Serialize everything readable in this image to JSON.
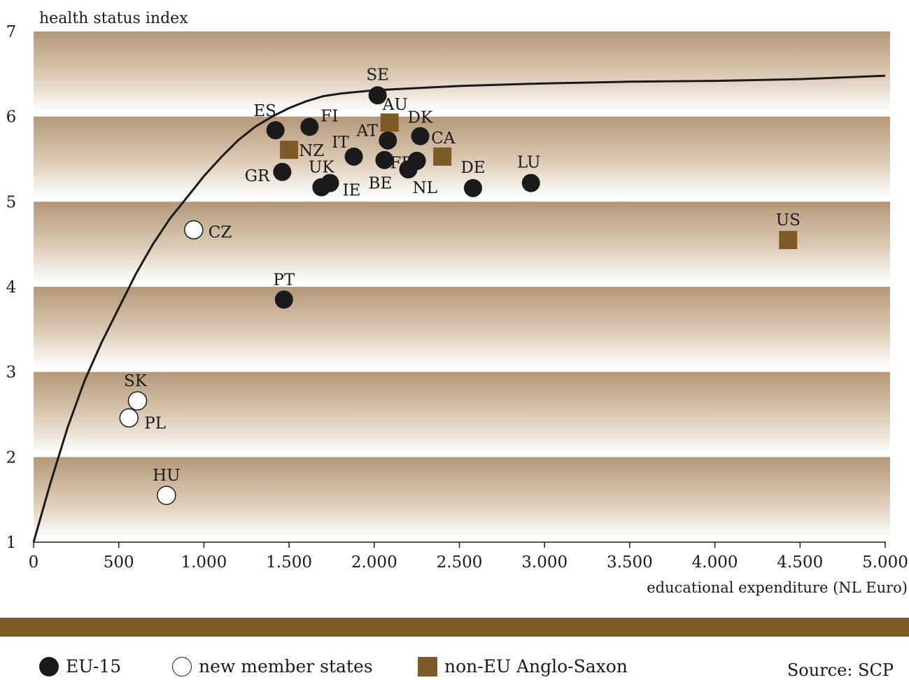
{
  "colors": {
    "band": "#b79d7f",
    "accent": "#7d5a26",
    "eu": "#1a1a1a",
    "new": "#ffffff"
  },
  "chart_data": {
    "type": "scatter",
    "ylabel": "health status index",
    "xlabel": "educational expenditure (NL Euro)",
    "xlim": [
      0,
      5000
    ],
    "ylim": [
      1,
      7
    ],
    "x_ticks": [
      0,
      500,
      1000,
      1500,
      2000,
      2500,
      3000,
      3500,
      4000,
      4500,
      5000
    ],
    "x_tick_labels": [
      "0",
      "500",
      "1.000",
      "1.500",
      "2.000",
      "2.500",
      "3.000",
      "3.500",
      "4.000",
      "4.500",
      "5.000"
    ],
    "y_ticks": [
      1,
      2,
      3,
      4,
      5,
      6,
      7
    ],
    "y_tick_labels": [
      "1",
      "2",
      "3",
      "4",
      "5",
      "6",
      "7"
    ],
    "series": [
      {
        "name": "EU-15",
        "marker": "filled-circle",
        "points": [
          {
            "label": "SE",
            "x": 2020,
            "y": 6.25
          },
          {
            "label": "ES",
            "x": 1420,
            "y": 5.84
          },
          {
            "label": "FI",
            "x": 1620,
            "y": 5.88
          },
          {
            "label": "AT",
            "x": 2080,
            "y": 5.72
          },
          {
            "label": "DK",
            "x": 2270,
            "y": 5.77
          },
          {
            "label": "IT",
            "x": 1880,
            "y": 5.53
          },
          {
            "label": "FR",
            "x": 2060,
            "y": 5.49
          },
          {
            "label": "FR2",
            "x": 2250,
            "y": 5.48
          },
          {
            "label": "GR",
            "x": 1460,
            "y": 5.35
          },
          {
            "label": "UK",
            "x": 1690,
            "y": 5.17
          },
          {
            "label": "IE",
            "x": 1740,
            "y": 5.22
          },
          {
            "label": "NL",
            "x": 2200,
            "y": 5.38
          },
          {
            "label": "DE",
            "x": 2580,
            "y": 5.16
          },
          {
            "label": "LU",
            "x": 2920,
            "y": 5.22
          },
          {
            "label": "PT",
            "x": 1470,
            "y": 3.85
          }
        ]
      },
      {
        "name": "new member states",
        "marker": "open-circle",
        "points": [
          {
            "label": "CZ",
            "x": 940,
            "y": 4.67
          },
          {
            "label": "SK",
            "x": 610,
            "y": 2.66
          },
          {
            "label": "PL",
            "x": 560,
            "y": 2.46
          },
          {
            "label": "HU",
            "x": 780,
            "y": 1.55
          }
        ]
      },
      {
        "name": "non-EU Anglo-Saxon",
        "marker": "square",
        "points": [
          {
            "label": "AU",
            "x": 2090,
            "y": 5.93
          },
          {
            "label": "NZ",
            "x": 1500,
            "y": 5.61
          },
          {
            "label": "CA",
            "x": 2400,
            "y": 5.53
          },
          {
            "label": "US",
            "x": 4430,
            "y": 4.55
          }
        ]
      }
    ],
    "curve": [
      [
        0,
        1.0
      ],
      [
        100,
        1.7
      ],
      [
        200,
        2.35
      ],
      [
        300,
        2.9
      ],
      [
        400,
        3.35
      ],
      [
        500,
        3.75
      ],
      [
        600,
        4.15
      ],
      [
        700,
        4.5
      ],
      [
        800,
        4.8
      ],
      [
        900,
        5.05
      ],
      [
        1000,
        5.3
      ],
      [
        1100,
        5.52
      ],
      [
        1200,
        5.72
      ],
      [
        1300,
        5.88
      ],
      [
        1400,
        6.0
      ],
      [
        1500,
        6.1
      ],
      [
        1600,
        6.18
      ],
      [
        1700,
        6.24
      ],
      [
        1800,
        6.27
      ],
      [
        2000,
        6.31
      ],
      [
        2500,
        6.36
      ],
      [
        3000,
        6.39
      ],
      [
        3500,
        6.41
      ],
      [
        4000,
        6.42
      ],
      [
        4500,
        6.44
      ],
      [
        5000,
        6.48
      ]
    ]
  },
  "point_labels": {
    "SE": "SE",
    "ES": "ES",
    "FI": "FI",
    "AT": "AT",
    "DK": "DK",
    "IT": "IT",
    "FR": "FR",
    "GR": "GR",
    "UK": "UK",
    "IE": "IE",
    "NL": "NL",
    "DE": "DE",
    "LU": "LU",
    "PT": "PT",
    "CZ": "CZ",
    "SK": "SK",
    "PL": "PL",
    "HU": "HU",
    "AU": "AU",
    "NZ": "NZ",
    "CA": "CA",
    "BE": "BE",
    "US": "US"
  },
  "legend": {
    "eu": "EU-15",
    "new": "new member states",
    "anglo": "non-EU Anglo-Saxon"
  },
  "source": "Source: SCP"
}
